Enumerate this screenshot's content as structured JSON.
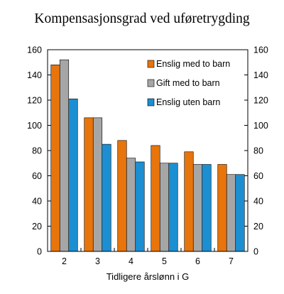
{
  "chart_data": {
    "type": "bar",
    "title": "Kompensasjonsgrad ved uføretrygding",
    "xlabel": "Tidligere årslønn i G",
    "ylabel": "",
    "categories": [
      "2",
      "3",
      "4",
      "5",
      "6",
      "7"
    ],
    "ylim": [
      0,
      160
    ],
    "yticks": [
      0,
      20,
      40,
      60,
      80,
      100,
      120,
      140,
      160
    ],
    "grid": false,
    "legend_position": "top-right",
    "secondary_y_axis": true,
    "series": [
      {
        "name": "Enslig med to barn",
        "color": "#E8740C",
        "values": [
          148,
          106,
          88,
          84,
          79,
          69
        ]
      },
      {
        "name": "Gift med to barn",
        "color": "#A6A6A6",
        "values": [
          152,
          106,
          74,
          70,
          69,
          61
        ]
      },
      {
        "name": "Enslig uten barn",
        "color": "#1B8FD2",
        "values": [
          121,
          85,
          71,
          70,
          69,
          61
        ]
      }
    ]
  }
}
